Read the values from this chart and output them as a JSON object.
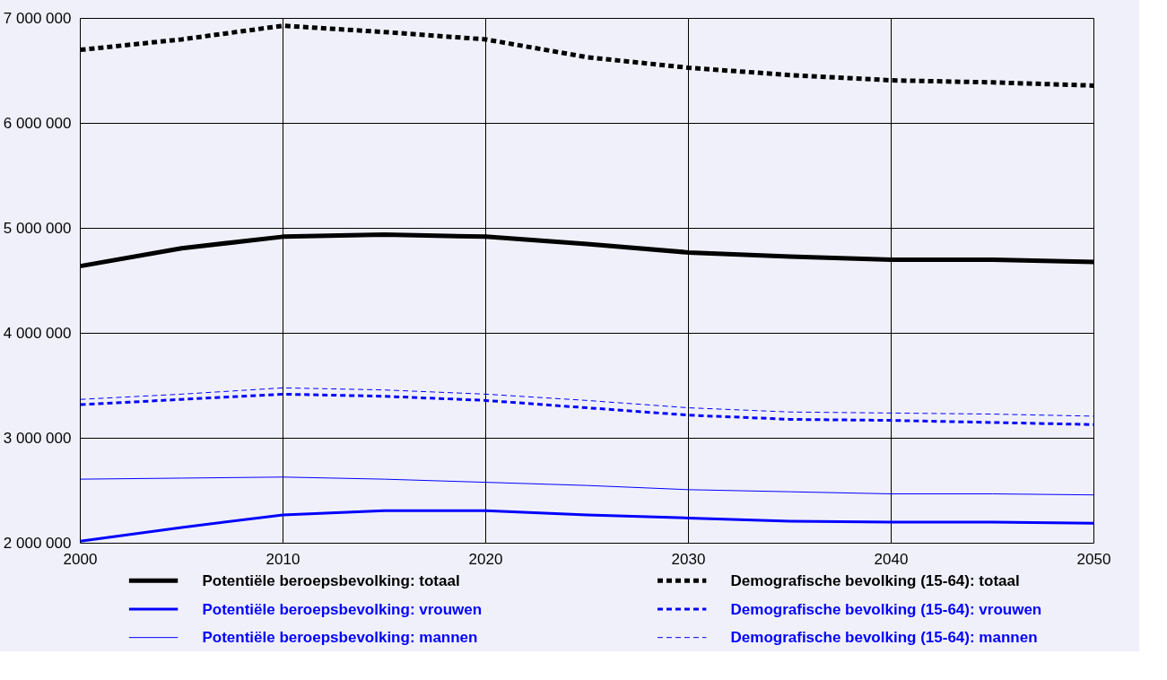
{
  "chart_data": {
    "type": "line",
    "x": [
      2000,
      2005,
      2010,
      2015,
      2020,
      2025,
      2030,
      2035,
      2040,
      2045,
      2050
    ],
    "xlim": [
      2000,
      2050
    ],
    "xticks": [
      2000,
      2010,
      2020,
      2030,
      2040,
      2050
    ],
    "ylim": [
      2000000,
      7000000
    ],
    "yticks": [
      {
        "value": 2000000,
        "label": "2 000 000"
      },
      {
        "value": 3000000,
        "label": "3 000 000"
      },
      {
        "value": 4000000,
        "label": "4 000 000"
      },
      {
        "value": 5000000,
        "label": "5 000 000"
      },
      {
        "value": 6000000,
        "label": "6 000 000"
      },
      {
        "value": 7000000,
        "label": "7 000 000"
      }
    ],
    "grid": true,
    "legend": "bottom",
    "series": [
      {
        "name": "Potentiële beroepsbevolking: totaal",
        "color": "#000000",
        "line_style": "solid",
        "values": [
          4640000,
          4810000,
          4920000,
          4940000,
          4920000,
          4850000,
          4770000,
          4730000,
          4700000,
          4700000,
          4680000
        ]
      },
      {
        "name": "Potentiële beroepsbevolking: vrouwen",
        "color": "#0000ff",
        "line_style": "solid",
        "values": [
          2020000,
          2150000,
          2270000,
          2310000,
          2310000,
          2270000,
          2240000,
          2210000,
          2200000,
          2200000,
          2190000
        ]
      },
      {
        "name": "Potentiële beroepsbevolking: mannen",
        "color": "#0000ff",
        "line_style": "solid",
        "values": [
          2610000,
          2620000,
          2630000,
          2610000,
          2580000,
          2550000,
          2510000,
          2490000,
          2470000,
          2470000,
          2460000
        ]
      },
      {
        "name": "Demografische bevolking (15-64): totaal",
        "color": "#000000",
        "line_style": "dashed",
        "values": [
          6700000,
          6800000,
          6930000,
          6870000,
          6800000,
          6630000,
          6530000,
          6460000,
          6410000,
          6390000,
          6360000
        ]
      },
      {
        "name": "Demografische bevolking (15-64): vrouwen",
        "color": "#0000ff",
        "line_style": "dashed",
        "values": [
          3320000,
          3370000,
          3420000,
          3400000,
          3360000,
          3290000,
          3220000,
          3180000,
          3170000,
          3150000,
          3130000
        ]
      },
      {
        "name": "Demografische bevolking (15-64): mannen",
        "color": "#0000ff",
        "line_style": "dashed",
        "values": [
          3370000,
          3420000,
          3480000,
          3460000,
          3420000,
          3360000,
          3290000,
          3250000,
          3240000,
          3230000,
          3210000
        ]
      }
    ]
  }
}
